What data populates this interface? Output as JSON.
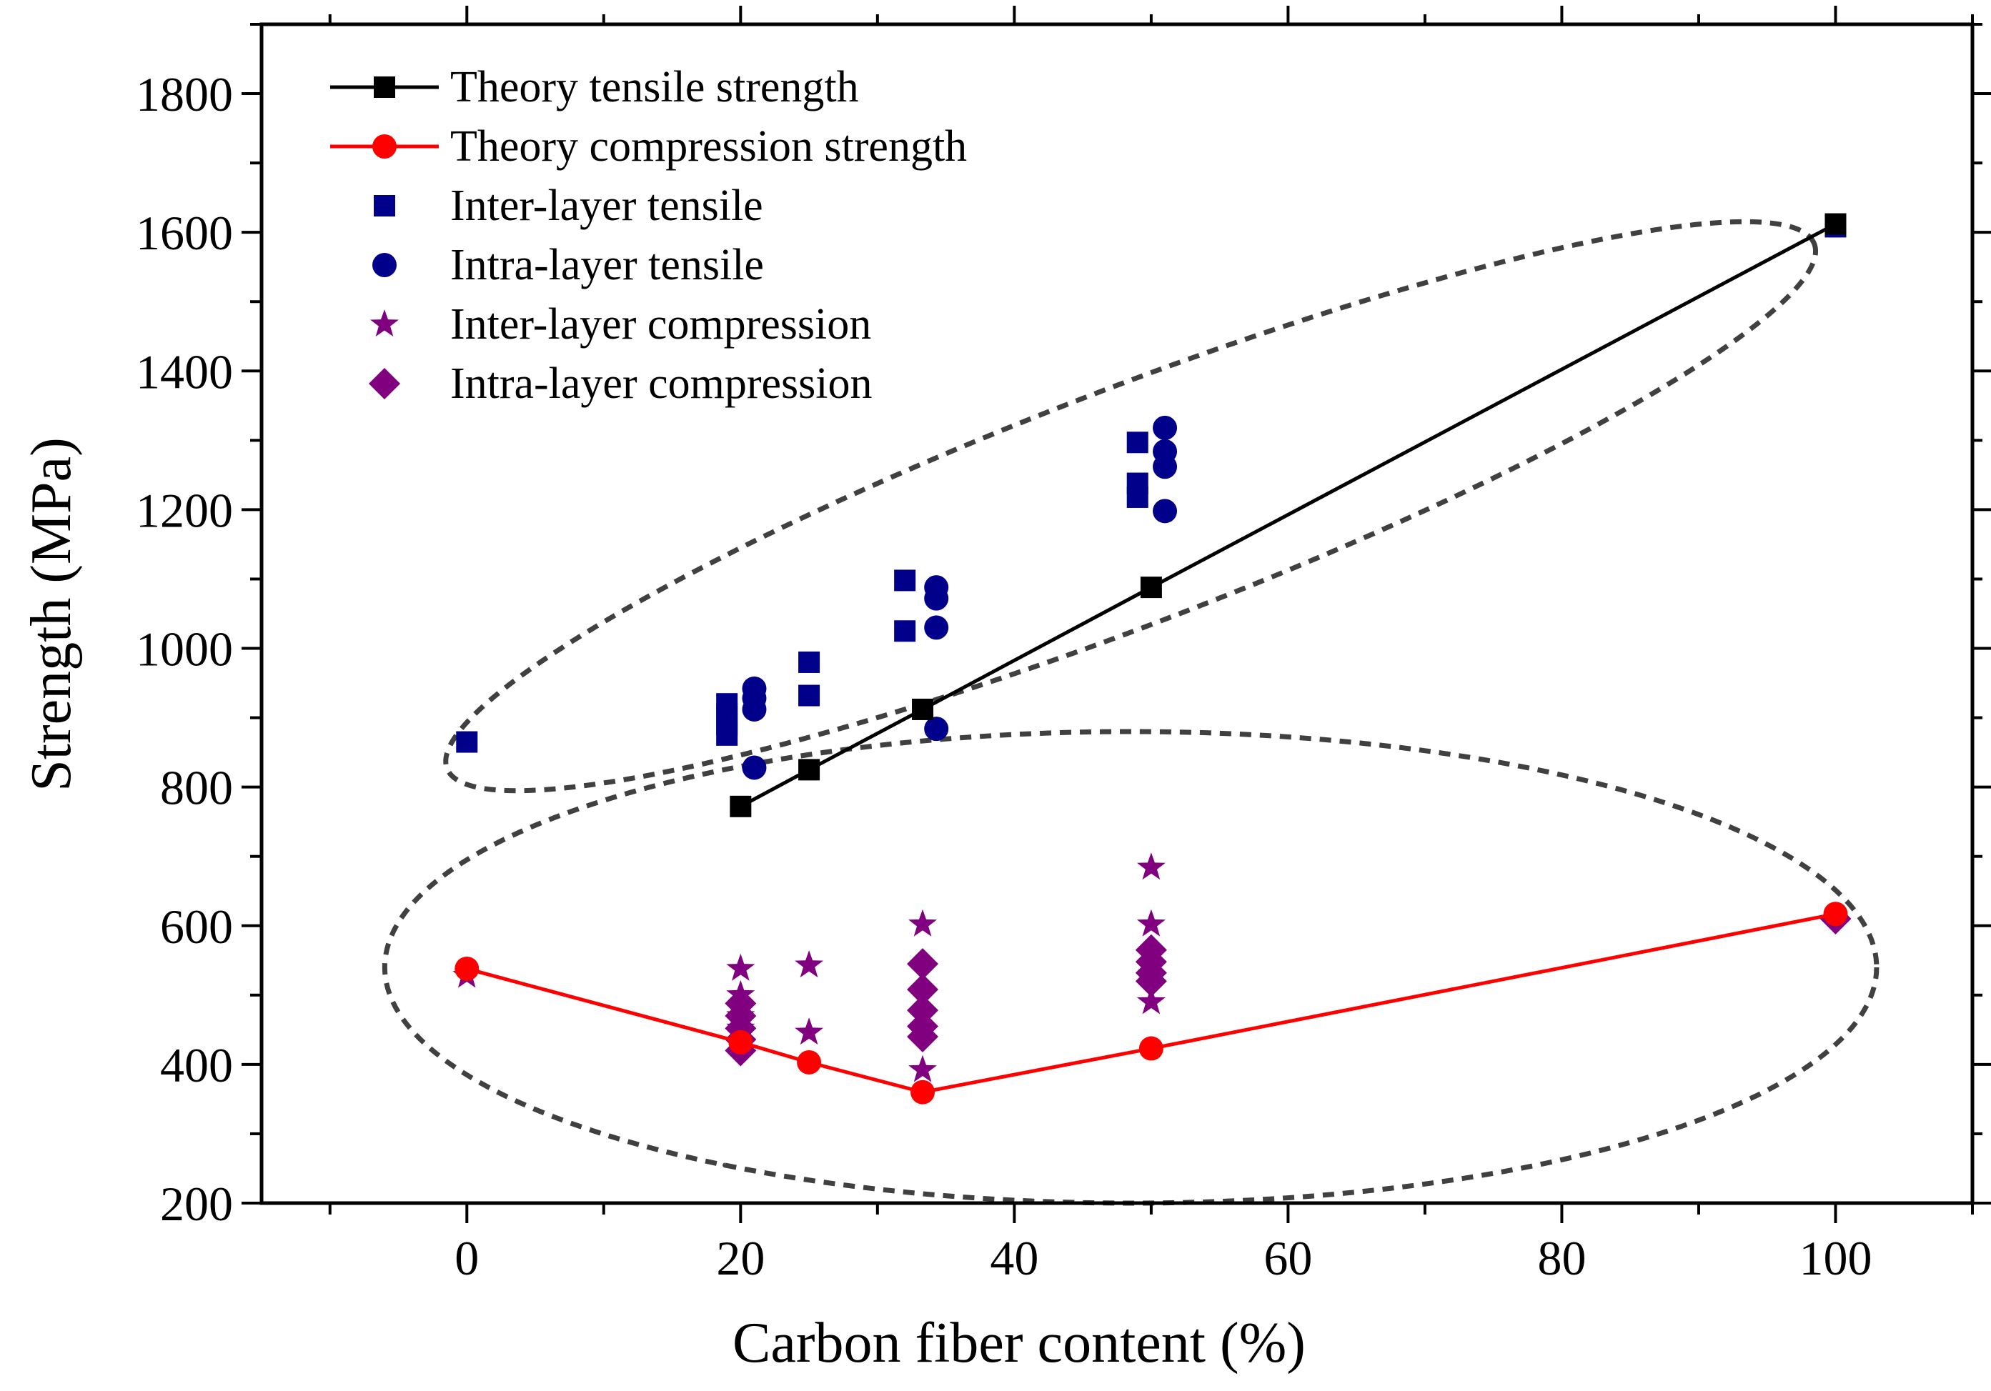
{
  "chart_data": {
    "type": "scatter",
    "title": "",
    "xlabel": "Carbon fiber content (%)",
    "ylabel": "Strength (MPa)",
    "xlim": [
      -15,
      110
    ],
    "ylim": [
      200,
      1900
    ],
    "xticks": [
      0,
      20,
      40,
      60,
      80,
      100
    ],
    "xtick_labels": [
      "0",
      "20",
      "40",
      "60",
      "80",
      "100"
    ],
    "yticks": [
      200,
      400,
      600,
      800,
      1000,
      1200,
      1400,
      1600,
      1800
    ],
    "ytick_labels": [
      "200",
      "400",
      "600",
      "800",
      "1000",
      "1200",
      "1400",
      "1600",
      "1800"
    ],
    "legend_position": "top-left",
    "series": [
      {
        "name": "Theory tensile strength",
        "marker": "square",
        "line": true,
        "color": "#000000",
        "x": [
          20,
          25,
          33.3,
          50,
          100
        ],
        "y": [
          772,
          825,
          912,
          1088,
          1612
        ]
      },
      {
        "name": "Theory compression strength",
        "marker": "circle",
        "line": true,
        "color": "#ff0000",
        "x": [
          0,
          20,
          25,
          33.3,
          50,
          100
        ],
        "y": [
          538,
          432,
          403,
          360,
          423,
          617
        ]
      },
      {
        "name": "Inter-layer tensile",
        "marker": "square",
        "line": false,
        "color": "#00008b",
        "x": [
          0,
          19,
          19,
          19,
          19,
          25,
          25,
          32,
          32,
          49,
          49,
          49,
          100
        ],
        "y": [
          865,
          920,
          905,
          890,
          875,
          980,
          932,
          1098,
          1025,
          1297,
          1238,
          1218,
          1608
        ]
      },
      {
        "name": "Intra-layer tensile",
        "marker": "circle",
        "line": false,
        "color": "#00008b",
        "x": [
          21,
          21,
          21,
          21,
          34.3,
          34.3,
          34.3,
          34.3,
          51,
          51,
          51,
          51
        ],
        "y": [
          942,
          928,
          912,
          828,
          1088,
          1072,
          1030,
          884,
          1318,
          1284,
          1262,
          1198
        ]
      },
      {
        "name": "Inter-layer compression",
        "marker": "star",
        "line": false,
        "color": "#800080",
        "x": [
          0,
          20,
          20,
          20,
          20,
          25,
          25,
          33.3,
          33.3,
          50,
          50,
          50
        ],
        "y": [
          528,
          538,
          500,
          470,
          452,
          543,
          446,
          602,
          392,
          684,
          602,
          490
        ]
      },
      {
        "name": "Intra-layer compression",
        "marker": "diamond",
        "line": false,
        "color": "#800080",
        "x": [
          20,
          20,
          20,
          20,
          20,
          33.3,
          33.3,
          33.3,
          33.3,
          33.3,
          50,
          50,
          50,
          50,
          100
        ],
        "y": [
          488,
          470,
          452,
          436,
          420,
          545,
          508,
          478,
          455,
          440,
          565,
          548,
          532,
          520,
          610
        ]
      }
    ],
    "annotations": [
      {
        "type": "dashed-ellipse",
        "label": "",
        "encloses": "tensile data (0–100%)"
      },
      {
        "type": "dashed-ellipse",
        "label": "",
        "encloses": "compression data (0–100%)"
      }
    ]
  }
}
